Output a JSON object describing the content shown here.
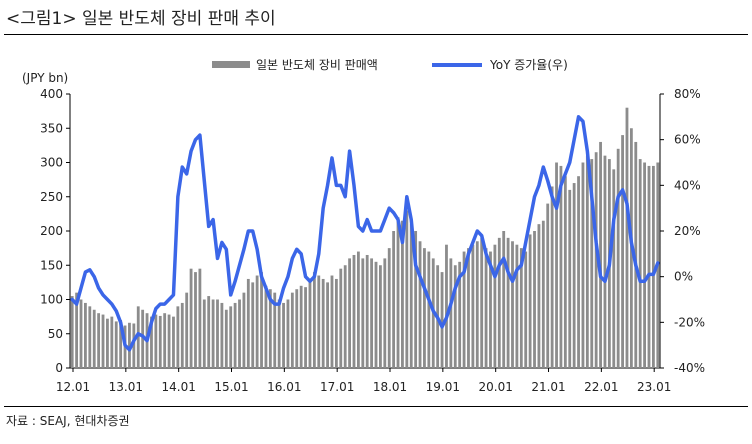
{
  "figure_title": "<그림1> 일본 반도체 장비 판매 추이",
  "source_note": "자료 : SEAJ, 현대차증권",
  "colors": {
    "bar": "#8c8c8c",
    "line": "#3b66e8",
    "axis": "#000000"
  },
  "chart_data": {
    "type": "bar",
    "left_unit_label": "(JPY bn)",
    "left_axis": {
      "min": 0,
      "max": 400,
      "ticks": [
        "0",
        "50",
        "100",
        "150",
        "200",
        "250",
        "300",
        "350",
        "400"
      ]
    },
    "right_axis": {
      "min": -40,
      "max": 80,
      "ticks": [
        "-40%",
        "-20%",
        "0%",
        "20%",
        "40%",
        "60%",
        "80%"
      ]
    },
    "x_labels": [
      "12.01",
      "13.01",
      "14.01",
      "15.01",
      "16.01",
      "17.01",
      "18.01",
      "19.01",
      "20.01",
      "21.01",
      "22.01",
      "23.01"
    ],
    "legend": [
      {
        "name": "일본 반도체 장비 판매액",
        "kind": "bar"
      },
      {
        "name": "YoY 증가율(우)",
        "kind": "line"
      }
    ],
    "start_period": "2012.01",
    "sales_jpy_bn": [
      105,
      110,
      100,
      95,
      90,
      85,
      80,
      78,
      72,
      75,
      68,
      70,
      62,
      66,
      65,
      90,
      85,
      80,
      75,
      78,
      76,
      80,
      78,
      75,
      90,
      95,
      110,
      145,
      140,
      145,
      100,
      105,
      100,
      100,
      95,
      85,
      90,
      95,
      100,
      110,
      130,
      125,
      135,
      140,
      120,
      115,
      110,
      100,
      95,
      100,
      110,
      115,
      120,
      118,
      130,
      140,
      135,
      130,
      125,
      135,
      130,
      145,
      150,
      160,
      165,
      170,
      160,
      165,
      160,
      155,
      150,
      160,
      175,
      200,
      220,
      215,
      230,
      210,
      200,
      185,
      175,
      170,
      160,
      150,
      140,
      180,
      160,
      150,
      155,
      170,
      175,
      180,
      185,
      190,
      175,
      170,
      180,
      190,
      200,
      190,
      185,
      180,
      175,
      170,
      195,
      200,
      210,
      215,
      240,
      265,
      300,
      295,
      280,
      260,
      270,
      280,
      300,
      310,
      305,
      315,
      330,
      310,
      305,
      290,
      320,
      340,
      380,
      350,
      330,
      305,
      300,
      295,
      295,
      300
    ],
    "yoy_pct": [
      -10,
      -12,
      -5,
      2,
      3,
      0,
      -5,
      -8,
      -10,
      -12,
      -15,
      -20,
      -30,
      -32,
      -28,
      -25,
      -26,
      -28,
      -20,
      -14,
      -12,
      -12,
      -10,
      -8,
      35,
      48,
      45,
      55,
      60,
      62,
      42,
      22,
      25,
      8,
      15,
      12,
      -8,
      -2,
      5,
      12,
      20,
      20,
      12,
      0,
      -5,
      -10,
      -12,
      -12,
      -5,
      0,
      8,
      12,
      10,
      0,
      -2,
      0,
      10,
      30,
      40,
      52,
      40,
      40,
      35,
      55,
      40,
      22,
      20,
      25,
      20,
      20,
      20,
      25,
      30,
      28,
      25,
      15,
      35,
      25,
      5,
      0,
      -5,
      -10,
      -15,
      -18,
      -22,
      -18,
      -12,
      -5,
      0,
      2,
      10,
      15,
      20,
      18,
      10,
      5,
      0,
      5,
      8,
      2,
      -2,
      3,
      5,
      15,
      25,
      35,
      40,
      48,
      42,
      35,
      30,
      40,
      45,
      50,
      60,
      70,
      68,
      55,
      35,
      15,
      0,
      -2,
      5,
      25,
      35,
      38,
      32,
      15,
      5,
      -2,
      -2,
      1,
      1,
      6
    ]
  }
}
